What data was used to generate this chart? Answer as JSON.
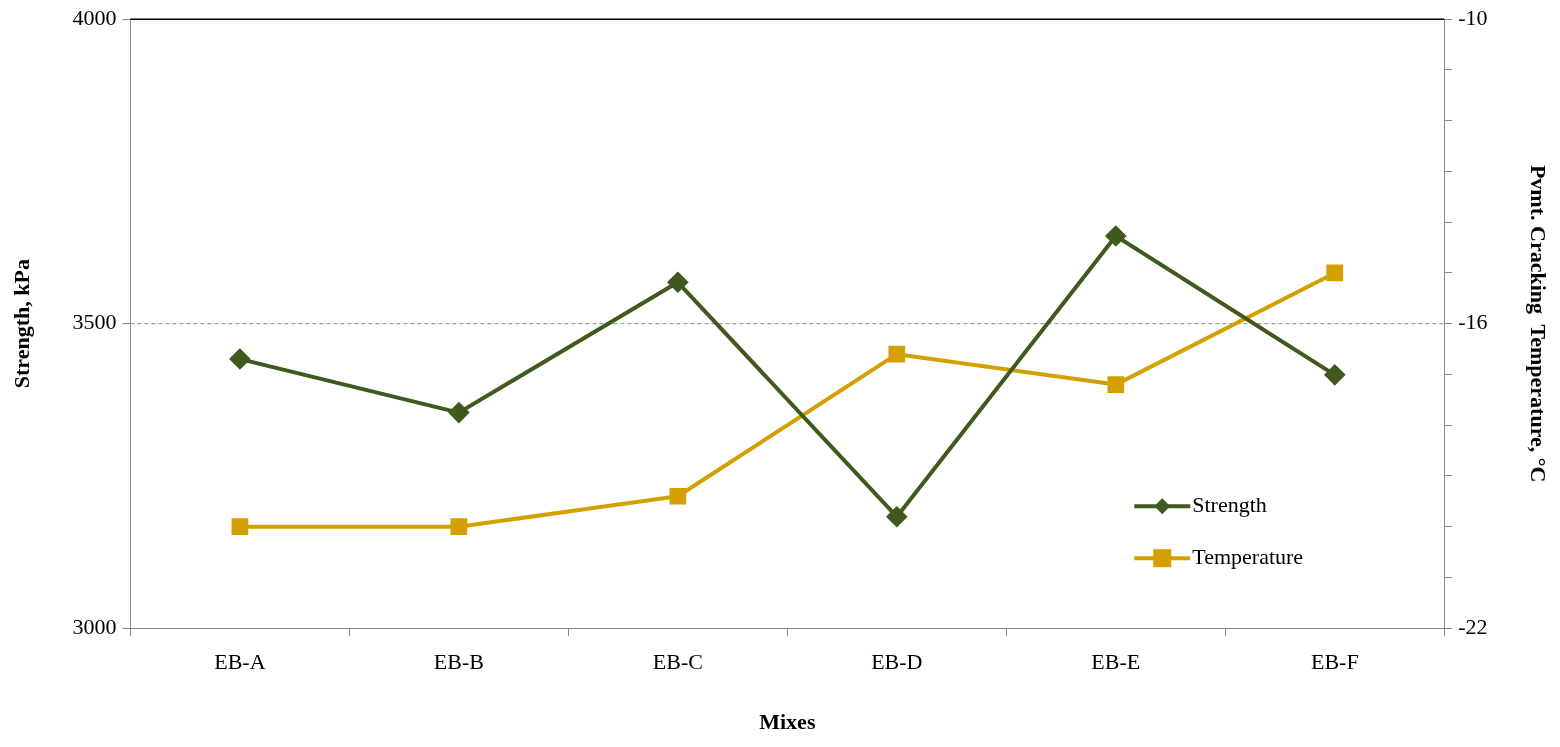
{
  "chart_data": {
    "type": "line",
    "xlabel": "Mixes",
    "ylabel": "Strength, kPa",
    "y2label": "Pvmt. Cracking  Temperature, °C",
    "categories": [
      "EB-A",
      "EB-B",
      "EB-C",
      "EB-D",
      "EB-E",
      "EB-F"
    ],
    "series": [
      {
        "name": "Strength",
        "color": "#3f5a1c",
        "marker": "diamond",
        "values": [
          3442,
          3354,
          3568,
          3183,
          3644,
          3416
        ]
      },
      {
        "name": "Temperature",
        "color": "#d4a000",
        "marker": "square",
        "axis": "y2",
        "values": [
          -20,
          -20,
          -19.4,
          -16.6,
          -17.2,
          -15
        ]
      }
    ],
    "ylim": [
      3000,
      4000
    ],
    "yticks": [
      3000,
      3500,
      4000
    ],
    "y2lim": [
      -22,
      -10
    ],
    "y2ticks": [
      -22,
      {
        "value": -21,
        "label": null
      },
      {
        "value": -20,
        "label": null
      },
      {
        "value": -19,
        "label": null
      },
      {
        "value": -18,
        "label": null
      },
      {
        "value": -17,
        "label": null
      },
      -16,
      {
        "value": -15,
        "label": null
      },
      {
        "value": -14,
        "label": null
      },
      {
        "value": -13,
        "label": null
      },
      {
        "value": -12,
        "label": null
      },
      {
        "value": -11,
        "label": null
      },
      -10
    ],
    "grid": "y",
    "line_style": "solid",
    "legend": "bottom right"
  }
}
